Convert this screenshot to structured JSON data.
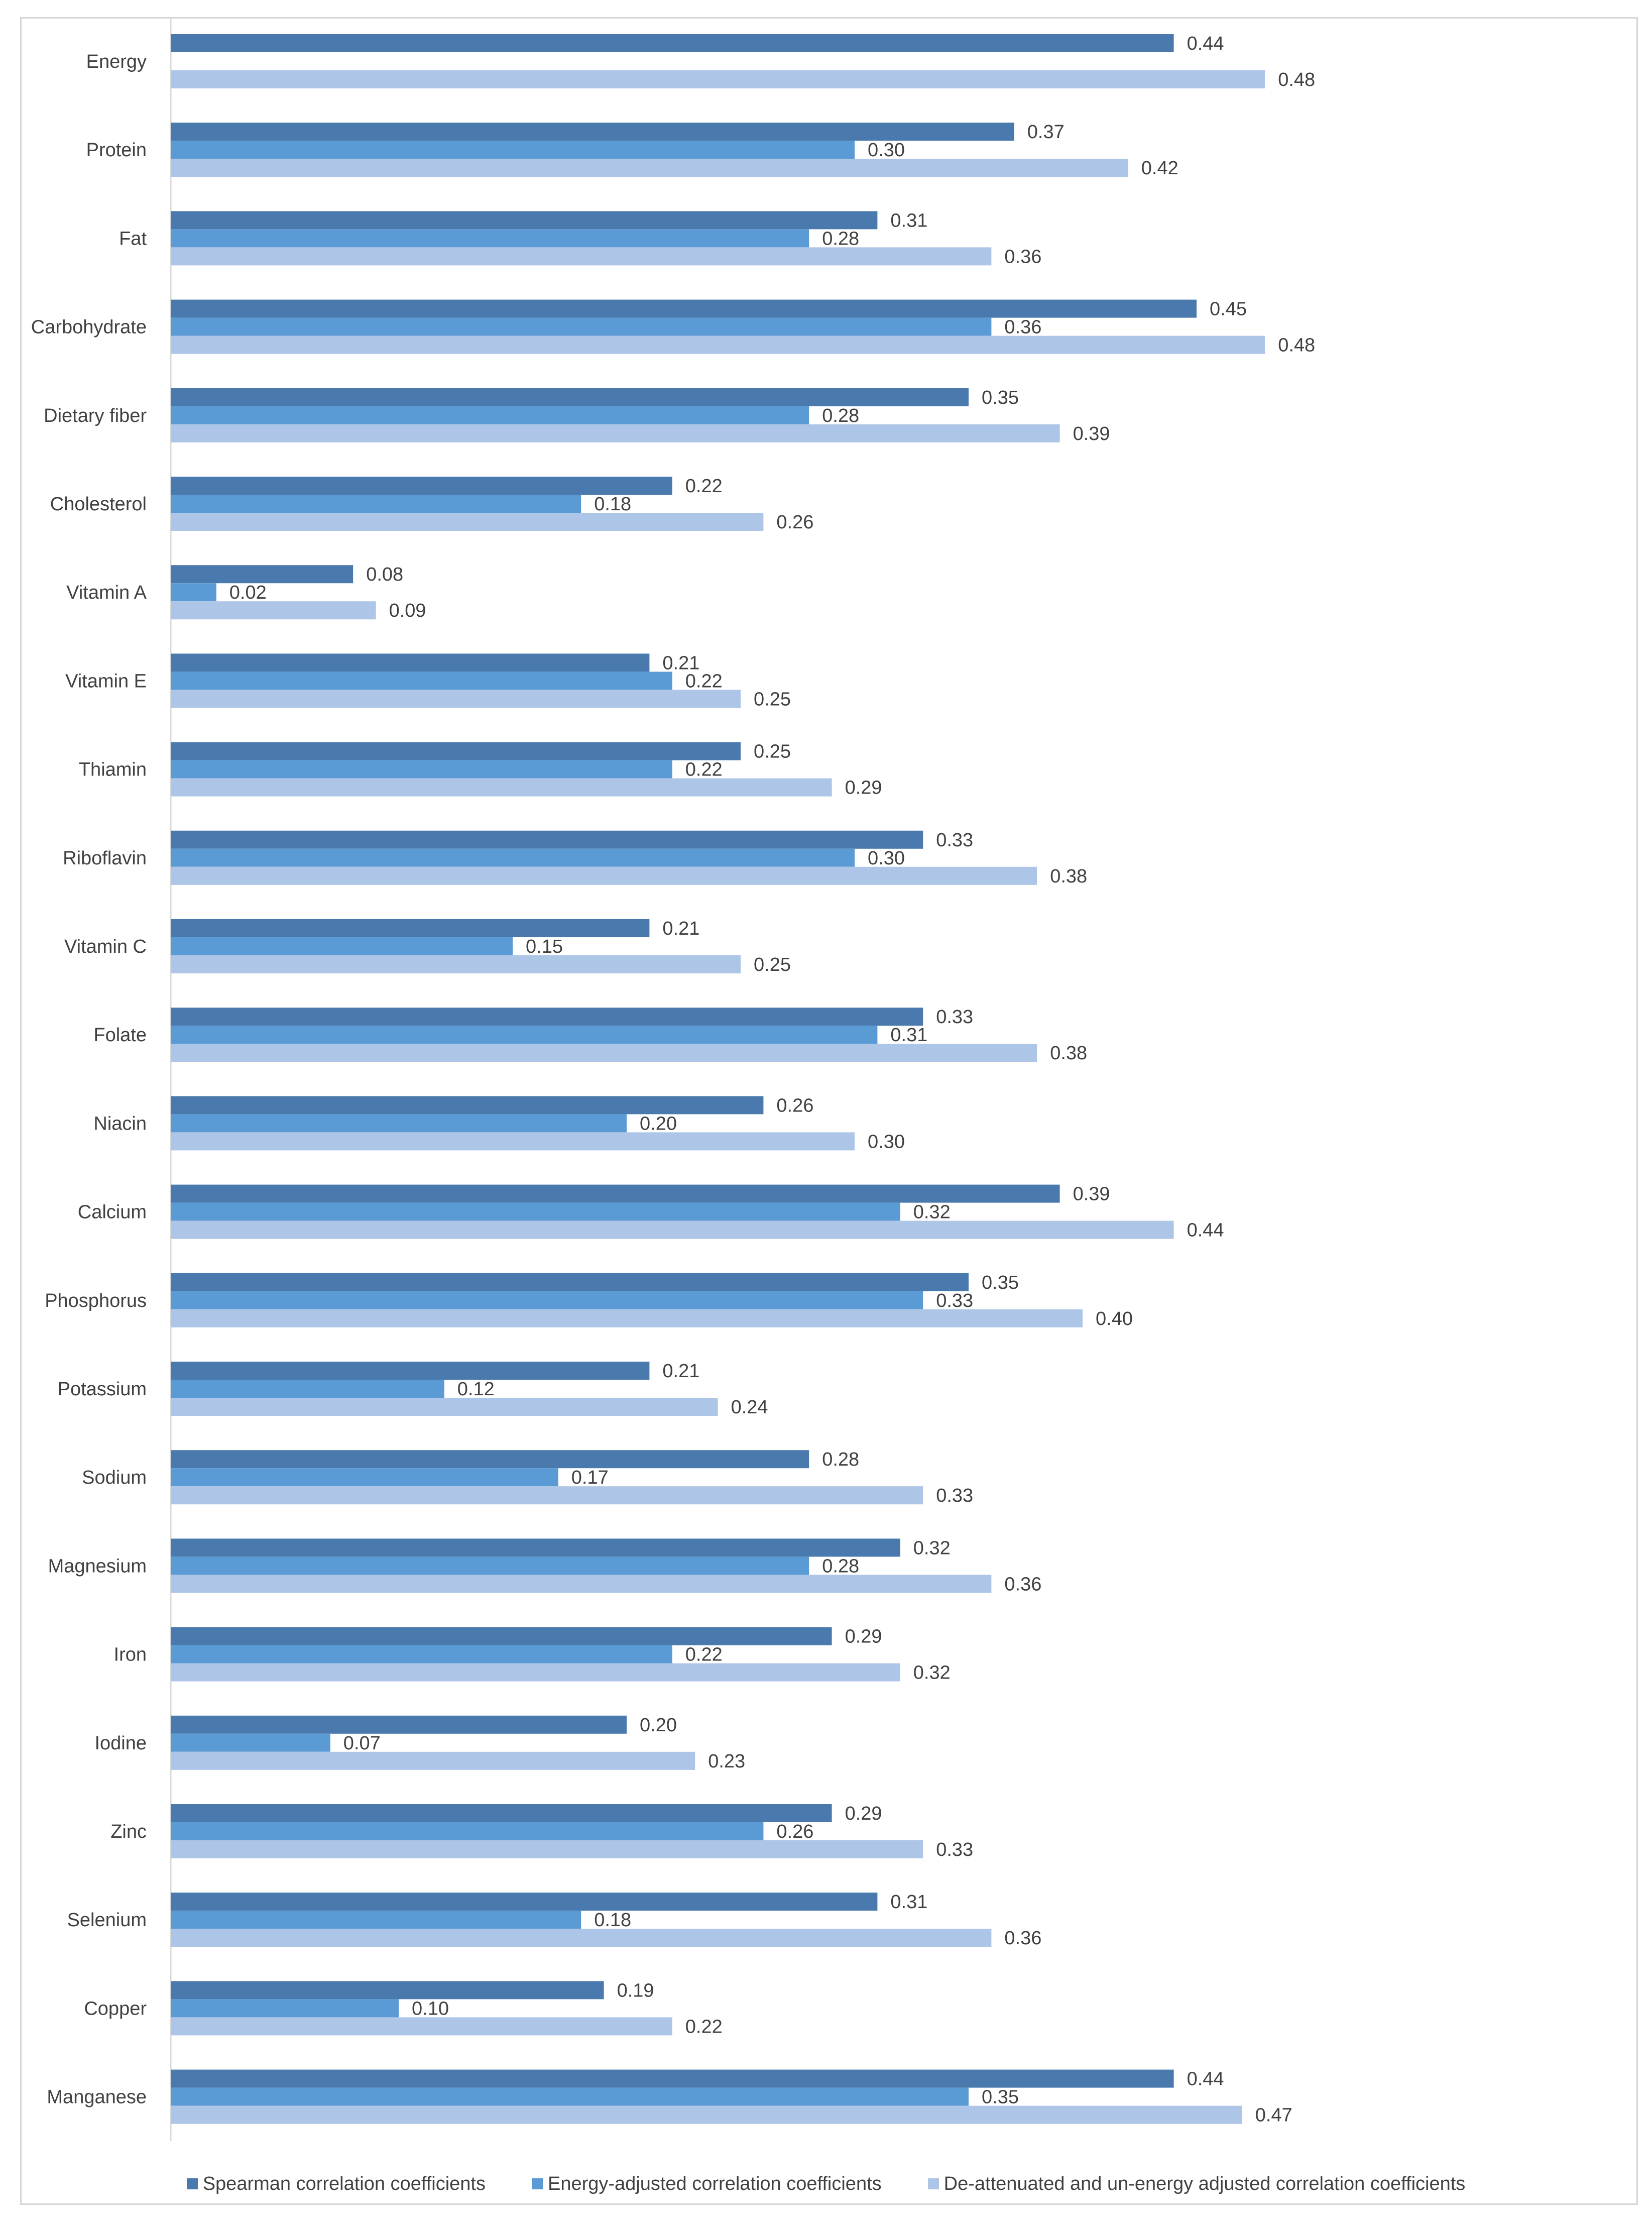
{
  "chart_data": {
    "type": "bar",
    "orientation": "horizontal",
    "title": "",
    "xlabel": "",
    "ylabel": "",
    "xlim": [
      0,
      0.5
    ],
    "grid": false,
    "legend_position": "bottom",
    "categories": [
      "Energy",
      "Protein",
      "Fat",
      "Carbohydrate",
      "Dietary fiber",
      "Cholesterol",
      "Vitamin A",
      "Vitamin E",
      "Thiamin",
      "Riboflavin",
      "Vitamin C",
      "Folate",
      "Niacin",
      "Calcium",
      "Phosphorus",
      "Potassium",
      "Sodium",
      "Magnesium",
      "Iron",
      "Iodine",
      "Zinc",
      "Selenium",
      "Copper",
      "Manganese"
    ],
    "series": [
      {
        "name": "Spearman correlation coefficients",
        "color": "#4a7aad",
        "values": [
          0.44,
          0.37,
          0.31,
          0.45,
          0.35,
          0.22,
          0.08,
          0.21,
          0.25,
          0.33,
          0.21,
          0.33,
          0.26,
          0.39,
          0.35,
          0.21,
          0.28,
          0.32,
          0.29,
          0.2,
          0.29,
          0.31,
          0.19,
          0.44
        ],
        "labels": [
          "0.44",
          "0.37",
          "0.31",
          "0.45",
          "0.35",
          "0.22",
          "0.08",
          "0.21",
          "0.25",
          "0.33",
          "0.21",
          "0.33",
          "0.26",
          "0.39",
          "0.35",
          "0.21",
          "0.28",
          "0.32",
          "0.29",
          "0.20",
          "0.29",
          "0.31",
          "0.19",
          "0.44"
        ]
      },
      {
        "name": "Energy-adjusted correlation coefficients",
        "color": "#5b9bd5",
        "values": [
          null,
          0.3,
          0.28,
          0.36,
          0.28,
          0.18,
          0.02,
          0.22,
          0.22,
          0.3,
          0.15,
          0.31,
          0.2,
          0.32,
          0.33,
          0.12,
          0.17,
          0.28,
          0.22,
          0.07,
          0.26,
          0.18,
          0.1,
          0.35
        ],
        "labels": [
          null,
          "0.30",
          "0.28",
          "0.36",
          "0.28",
          "0.18",
          "0.02",
          "0.22",
          "0.22",
          "0.30",
          "0.15",
          "0.31",
          "0.20",
          "0.32",
          "0.33",
          "0.12",
          "0.17",
          "0.28",
          "0.22",
          "0.07",
          "0.26",
          "0.18",
          "0.10",
          "0.35"
        ]
      },
      {
        "name": "De-attenuated and un-energy adjusted correlation coefficients",
        "color": "#adc5e6",
        "values": [
          0.48,
          0.42,
          0.36,
          0.48,
          0.39,
          0.26,
          0.09,
          0.25,
          0.29,
          0.38,
          0.25,
          0.38,
          0.3,
          0.44,
          0.4,
          0.24,
          0.33,
          0.36,
          0.32,
          0.23,
          0.33,
          0.36,
          0.22,
          0.47
        ],
        "labels": [
          "0.48",
          "0.42",
          "0.36",
          "0.48",
          "0.39",
          "0.26",
          "0.09",
          "0.25",
          "0.29",
          "0.38",
          "0.25",
          "0.38",
          "0.30",
          "0.44",
          "0.40",
          "0.24",
          "0.33",
          "0.36",
          "0.32",
          "0.23",
          "0.33",
          "0.36",
          "0.22",
          "0.47"
        ]
      }
    ]
  }
}
